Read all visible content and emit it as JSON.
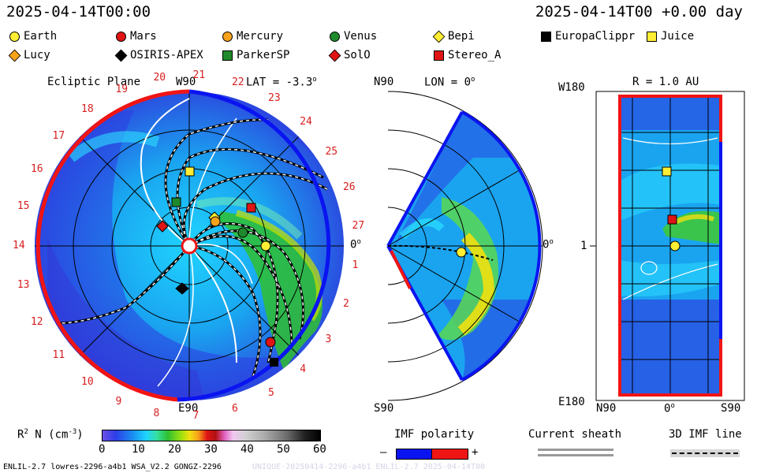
{
  "header": {
    "time_left": "2025-04-14T00:00",
    "time_right": "2025-04-14T00 +0.00 day"
  },
  "legend": [
    {
      "name": "Earth",
      "shape": "circle",
      "color": "#ffee33"
    },
    {
      "name": "Mars",
      "shape": "circle",
      "color": "#e01414"
    },
    {
      "name": "Mercury",
      "shape": "circle",
      "color": "#f7a21b"
    },
    {
      "name": "Venus",
      "shape": "circle",
      "color": "#1f8a2b"
    },
    {
      "name": "Bepi",
      "shape": "diamond",
      "color": "#ffee33"
    },
    {
      "name": "EuropaClippr",
      "shape": "square",
      "color": "#000000"
    },
    {
      "name": "Juice",
      "shape": "square",
      "color": "#ffee33"
    },
    {
      "name": "Lucy",
      "shape": "diamond",
      "color": "#f7a21b"
    },
    {
      "name": "OSIRIS-APEX",
      "shape": "diamond",
      "color": "#000000"
    },
    {
      "name": "ParkerSP",
      "shape": "square",
      "color": "#1f8a2b"
    },
    {
      "name": "SolO",
      "shape": "diamond",
      "color": "#e01414"
    },
    {
      "name": "Stereo_A",
      "shape": "square",
      "color": "#e01414"
    }
  ],
  "panel1": {
    "title": "Ecliptic Plane",
    "top_label": "W90",
    "lat_label": "LAT = -3.3",
    "bottom_label": "E90",
    "right_label": "0",
    "sectors": [
      "20",
      "21",
      "22",
      "23",
      "24",
      "25",
      "26",
      "27",
      "1",
      "2",
      "3",
      "4",
      "5",
      "6",
      "7",
      "8",
      "9",
      "10",
      "11",
      "12",
      "13",
      "14",
      "15",
      "16",
      "17",
      "18",
      "19"
    ]
  },
  "panel2": {
    "top_label": "N90",
    "lon_label": "LON = 0",
    "bottom_label": "S90",
    "right_label": "0"
  },
  "panel3": {
    "r_label": "R = 1.0 AU",
    "top_label": "W180",
    "bottom_label": "E180",
    "left_mark": "1",
    "x_left": "N90",
    "x_mid": "0",
    "x_right": "S90"
  },
  "colorbar": {
    "label": "R",
    "label_sup": "2",
    "label_rest": " N (cm",
    "label_exp": "-3",
    "label_end": ")",
    "ticks": [
      "0",
      "10",
      "20",
      "30",
      "40",
      "50",
      "60"
    ],
    "range": [
      0,
      60
    ]
  },
  "imf": {
    "title": "IMF polarity",
    "minus": "–",
    "plus": "+",
    "colors": {
      "negative": "#0a14f0",
      "positive": "#f01414"
    }
  },
  "current_sheath": {
    "title": "Current sheath"
  },
  "imf_line": {
    "title": "3D IMF line"
  },
  "footer": {
    "left": "ENLIL-2.7 lowres-2296-a4b1 WSA_V2.2 GONGZ-2296",
    "right": "UNIQUE-20250414-2296-a4b1 ENLIL-2.7  2025-04-14T00"
  },
  "chart_data": {
    "type": "heatmap",
    "quantity": "R2 N (cm-3)",
    "color_range": [
      0,
      60
    ],
    "date": "2025-04-14T00:00",
    "observer_lat": -3.3,
    "panel3_radius_au": 1.0
  }
}
